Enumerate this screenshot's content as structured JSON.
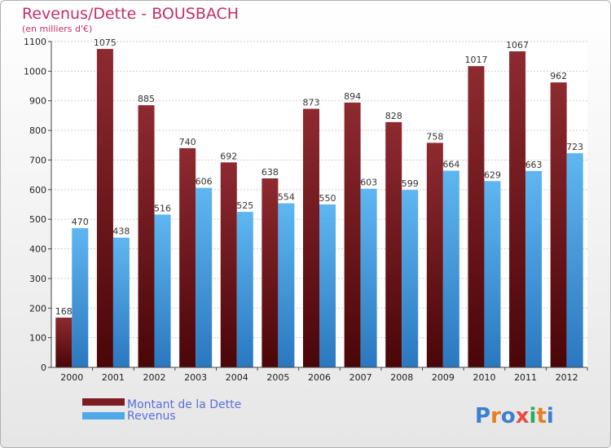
{
  "chart_data": {
    "type": "bar",
    "title": "Revenus/Dette - BOUSBACH",
    "subtitle": "(en milliers d'€)",
    "categories": [
      "2000",
      "2001",
      "2002",
      "2003",
      "2004",
      "2005",
      "2006",
      "2007",
      "2008",
      "2009",
      "2010",
      "2011",
      "2012"
    ],
    "series": [
      {
        "name": "Montant de la Dette",
        "color": "#7a1c22",
        "values": [
          168,
          1075,
          885,
          740,
          692,
          638,
          873,
          894,
          828,
          758,
          1017,
          1067,
          962
        ]
      },
      {
        "name": "Revenus",
        "color": "#4fa8e8",
        "values": [
          470,
          438,
          516,
          606,
          525,
          554,
          550,
          603,
          599,
          664,
          629,
          663,
          723
        ]
      }
    ],
    "ylim": [
      0,
      1100
    ],
    "yticks": [
      0,
      100,
      200,
      300,
      400,
      500,
      600,
      700,
      800,
      900,
      1000,
      1100
    ],
    "grid": true,
    "legend_position": "bottom-left"
  },
  "logo": {
    "text": "Proxiti"
  }
}
